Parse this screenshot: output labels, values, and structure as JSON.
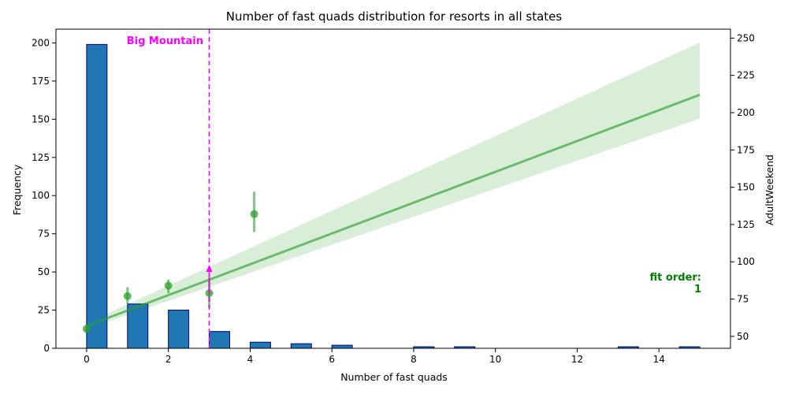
{
  "chart_data": {
    "type": "bar",
    "title": "Number of fast quads distribution for resorts in all states",
    "xlabel": "Number of fast quads",
    "ylabel": "Frequency",
    "ylabel_right": "AdultWeekend",
    "xlim": [
      -0.75,
      15.75
    ],
    "ylim": [
      0,
      209
    ],
    "ylim_right": [
      42,
      256
    ],
    "xticks": [
      0,
      2,
      4,
      6,
      8,
      10,
      12,
      14
    ],
    "yticks": [
      0,
      25,
      50,
      75,
      100,
      125,
      150,
      175,
      200
    ],
    "yticks_right": [
      50,
      75,
      100,
      125,
      150,
      175,
      200,
      225,
      250
    ],
    "histogram": {
      "bin_width": 0.5,
      "bins": [
        {
          "x": 0,
          "count": 199
        },
        {
          "x": 1,
          "count": 29
        },
        {
          "x": 2,
          "count": 25
        },
        {
          "x": 3,
          "count": 11
        },
        {
          "x": 4,
          "count": 4
        },
        {
          "x": 5,
          "count": 3
        },
        {
          "x": 6,
          "count": 2
        },
        {
          "x": 8,
          "count": 1
        },
        {
          "x": 9,
          "count": 1
        },
        {
          "x": 13,
          "count": 1
        },
        {
          "x": 14.5,
          "count": 1
        }
      ],
      "color": "#1f77b4",
      "edge_color": "#000080"
    },
    "points": [
      {
        "x": 0,
        "y": 55,
        "lo": 53,
        "hi": 58
      },
      {
        "x": 1,
        "y": 77,
        "lo": 72,
        "hi": 83
      },
      {
        "x": 2,
        "y": 84,
        "lo": 79,
        "hi": 88
      },
      {
        "x": 3,
        "y": 79,
        "lo": 69,
        "hi": 89
      },
      {
        "x": 4.1,
        "y": 132,
        "lo": 120,
        "hi": 147
      }
    ],
    "regression": {
      "x_range": [
        0,
        15
      ],
      "line": [
        57,
        212
      ],
      "ci_upper": [
        59,
        247
      ],
      "ci_lower": [
        55,
        196
      ],
      "color": "#2ca02c"
    },
    "vline": {
      "x": 3,
      "label": "Big Mountain",
      "color": "#ff00ff"
    },
    "arrow": {
      "x": 3,
      "from": 79,
      "to": 98
    },
    "annotation": {
      "lines": [
        "fit order:",
        "1"
      ],
      "color": "#008000"
    }
  }
}
